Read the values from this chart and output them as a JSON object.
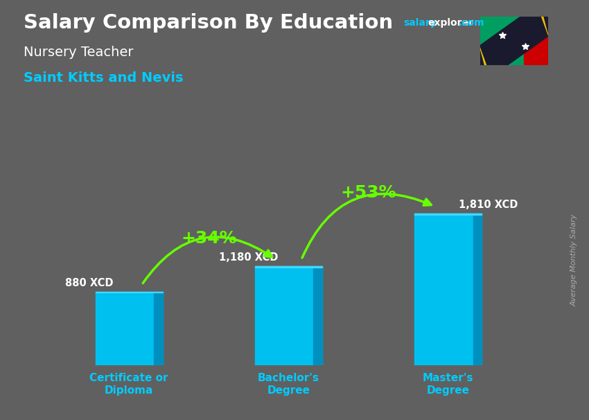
{
  "title": "Salary Comparison By Education",
  "subtitle": "Nursery Teacher",
  "country": "Saint Kitts and Nevis",
  "ylabel": "Average Monthly Salary",
  "categories": [
    "Certificate or\nDiploma",
    "Bachelor's\nDegree",
    "Master's\nDegree"
  ],
  "values": [
    880,
    1180,
    1810
  ],
  "value_labels": [
    "880 XCD",
    "1,180 XCD",
    "1,810 XCD"
  ],
  "pct_labels": [
    "+34%",
    "+53%"
  ],
  "bar_color": "#00c0f0",
  "bar_color_dark": "#0090c0",
  "bar_color_top": "#40d8ff",
  "title_color": "#ffffff",
  "subtitle_color": "#ffffff",
  "country_color": "#00ccff",
  "pct_color": "#66ff00",
  "value_label_color": "#ffffff",
  "xlabel_color": "#00ccff",
  "ylabel_color": "#aaaaaa",
  "watermark_salary": "salary",
  "watermark_explorer": "explorer",
  "watermark_com": ".com",
  "watermark_color_cyan": "#00ccff",
  "watermark_color_white": "#ffffff",
  "background_color": "#606060",
  "flag_colors": {
    "green": "#009e60",
    "red": "#cc0000",
    "black": "#1a1a2e",
    "yellow": "#f0c000"
  },
  "ylim": [
    0,
    2600
  ],
  "bar_positions": [
    0,
    1,
    2
  ],
  "bar_width": 0.42
}
